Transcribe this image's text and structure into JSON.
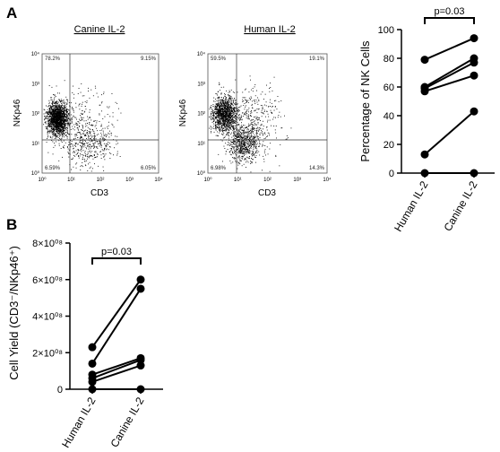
{
  "panel_a": {
    "letter": "A",
    "flow_plots": [
      {
        "title": "Canine IL-2",
        "ylabel": "NKp46",
        "xlabel": "CD3",
        "quadrants": {
          "upper_left": "78.2%",
          "upper_right": "9.15%",
          "lower_left": "6.59%",
          "lower_right": "6.05%"
        },
        "axis_ticks": [
          "10⁰",
          "10¹",
          "10²",
          "10³",
          "10⁴"
        ]
      },
      {
        "title": "Human IL-2",
        "ylabel": "NKp46",
        "xlabel": "CD3",
        "quadrants": {
          "upper_left": "59.5%",
          "upper_right": "19.1%",
          "lower_left": "6.98%",
          "lower_right": "14.3%"
        },
        "axis_ticks": [
          "10⁰",
          "10¹",
          "10²",
          "10³",
          "10⁴"
        ]
      }
    ]
  },
  "panel_b": {
    "letter": "B"
  },
  "chart_data": [
    {
      "type": "line",
      "categories": [
        "Human IL-2",
        "Canine IL-2"
      ],
      "ylabel": "Percentage of NK Cells",
      "ylim": [
        0,
        100
      ],
      "yticks": [
        0,
        20,
        40,
        60,
        80,
        100
      ],
      "annotation": "p=0.03",
      "pairs": [
        [
          0,
          0
        ],
        [
          13,
          43
        ],
        [
          57,
          68
        ],
        [
          59,
          77
        ],
        [
          60,
          80
        ],
        [
          79,
          94
        ]
      ]
    },
    {
      "type": "line",
      "categories": [
        "Human IL-2",
        "Canine IL-2"
      ],
      "ylabel": "Cell Yield (CD3⁻/NKp46⁺)",
      "ylim": [
        0,
        800000000
      ],
      "ytick_labels": [
        "0",
        "2×10⁰⁸",
        "4×10⁰⁸",
        "6×10⁰⁸",
        "8×10⁰⁸"
      ],
      "annotation": "p=0.03",
      "pairs": [
        [
          0,
          0
        ],
        [
          40000000,
          130000000
        ],
        [
          60000000,
          160000000
        ],
        [
          80000000,
          170000000
        ],
        [
          140000000,
          550000000
        ],
        [
          230000000,
          600000000
        ]
      ]
    }
  ]
}
